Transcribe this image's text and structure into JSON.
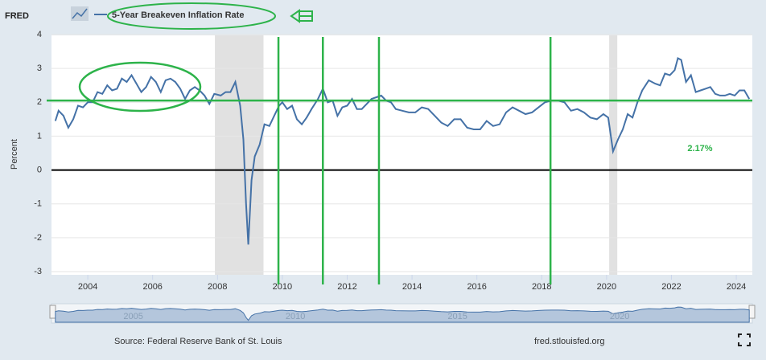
{
  "logo": "FRED",
  "chart_data": {
    "type": "line",
    "y_label": "Percent",
    "x": [
      2003.0,
      2003.1,
      2003.25,
      2003.4,
      2003.55,
      2003.7,
      2003.85,
      2004.0,
      2004.15,
      2004.3,
      2004.45,
      2004.6,
      2004.75,
      2004.9,
      2005.05,
      2005.2,
      2005.35,
      2005.5,
      2005.65,
      2005.8,
      2005.95,
      2006.1,
      2006.25,
      2006.4,
      2006.55,
      2006.7,
      2006.85,
      2007.0,
      2007.15,
      2007.3,
      2007.45,
      2007.6,
      2007.75,
      2007.9,
      2008.1,
      2008.25,
      2008.4,
      2008.55,
      2008.7,
      2008.8,
      2008.88,
      2008.95,
      2009.05,
      2009.15,
      2009.3,
      2009.45,
      2009.6,
      2009.75,
      2009.9,
      2010.0,
      2010.15,
      2010.3,
      2010.45,
      2010.6,
      2010.75,
      2010.9,
      2011.1,
      2011.25,
      2011.4,
      2011.55,
      2011.7,
      2011.85,
      2012.0,
      2012.15,
      2012.3,
      2012.45,
      2012.6,
      2012.75,
      2012.9,
      2013.05,
      2013.2,
      2013.35,
      2013.5,
      2013.7,
      2013.9,
      2014.1,
      2014.3,
      2014.5,
      2014.7,
      2014.9,
      2015.1,
      2015.3,
      2015.5,
      2015.7,
      2015.9,
      2016.1,
      2016.3,
      2016.5,
      2016.7,
      2016.9,
      2017.1,
      2017.3,
      2017.5,
      2017.7,
      2017.9,
      2018.1,
      2018.3,
      2018.5,
      2018.7,
      2018.9,
      2019.1,
      2019.3,
      2019.5,
      2019.7,
      2019.9,
      2020.05,
      2020.2,
      2020.35,
      2020.5,
      2020.65,
      2020.8,
      2020.95,
      2021.1,
      2021.3,
      2021.5,
      2021.65,
      2021.8,
      2021.95,
      2022.1,
      2022.2,
      2022.3,
      2022.45,
      2022.6,
      2022.75,
      2022.9,
      2023.05,
      2023.2,
      2023.35,
      2023.5,
      2023.65,
      2023.8,
      2023.95,
      2024.1,
      2024.25,
      2024.4
    ],
    "series": [
      {
        "name": "5-Year Breakeven Inflation Rate",
        "color": "#4572a7",
        "values": [
          1.45,
          1.75,
          1.6,
          1.25,
          1.5,
          1.9,
          1.85,
          2.0,
          2.0,
          2.3,
          2.25,
          2.5,
          2.35,
          2.4,
          2.7,
          2.6,
          2.8,
          2.55,
          2.3,
          2.45,
          2.75,
          2.6,
          2.3,
          2.65,
          2.7,
          2.6,
          2.4,
          2.1,
          2.35,
          2.45,
          2.35,
          2.2,
          1.95,
          2.25,
          2.2,
          2.3,
          2.3,
          2.6,
          1.9,
          0.9,
          -1.0,
          -2.2,
          -0.3,
          0.4,
          0.75,
          1.35,
          1.3,
          1.6,
          1.9,
          2.0,
          1.8,
          1.9,
          1.5,
          1.35,
          1.55,
          1.8,
          2.1,
          2.4,
          2.0,
          2.05,
          1.6,
          1.85,
          1.9,
          2.1,
          1.8,
          1.8,
          1.95,
          2.1,
          2.15,
          2.2,
          2.05,
          2.0,
          1.8,
          1.75,
          1.7,
          1.7,
          1.85,
          1.8,
          1.6,
          1.4,
          1.3,
          1.5,
          1.5,
          1.25,
          1.2,
          1.2,
          1.45,
          1.3,
          1.35,
          1.7,
          1.85,
          1.75,
          1.65,
          1.7,
          1.85,
          2.0,
          2.05,
          2.05,
          2.0,
          1.75,
          1.8,
          1.7,
          1.55,
          1.5,
          1.65,
          1.55,
          0.55,
          0.9,
          1.2,
          1.65,
          1.55,
          2.0,
          2.35,
          2.65,
          2.55,
          2.5,
          2.85,
          2.8,
          2.95,
          3.3,
          3.25,
          2.6,
          2.8,
          2.3,
          2.35,
          2.4,
          2.45,
          2.25,
          2.2,
          2.2,
          2.25,
          2.2,
          2.35,
          2.35,
          2.1
        ]
      }
    ],
    "xlim": [
      2002.98,
      2024.42
    ],
    "xticks": [
      2004,
      2006,
      2008,
      2010,
      2012,
      2014,
      2016,
      2018,
      2020,
      2022,
      2024
    ],
    "ylim": [
      -3,
      4
    ],
    "yticks": [
      -3,
      -2,
      -1,
      0,
      1,
      2,
      3,
      4
    ],
    "grid": true,
    "recessions": [
      [
        2007.92,
        2009.42
      ],
      [
        2020.08,
        2020.33
      ]
    ],
    "hline": 2.05,
    "vlines": [
      2009.88,
      2011.25,
      2012.98,
      2018.27
    ],
    "annotation": "2.17%",
    "annotation_color": "#2db34a",
    "navigator_ticks": [
      2005,
      2010,
      2015,
      2020
    ],
    "source": "Source: Federal Reserve Bank of St. Louis",
    "site": "fred.stlouisfed.org"
  }
}
